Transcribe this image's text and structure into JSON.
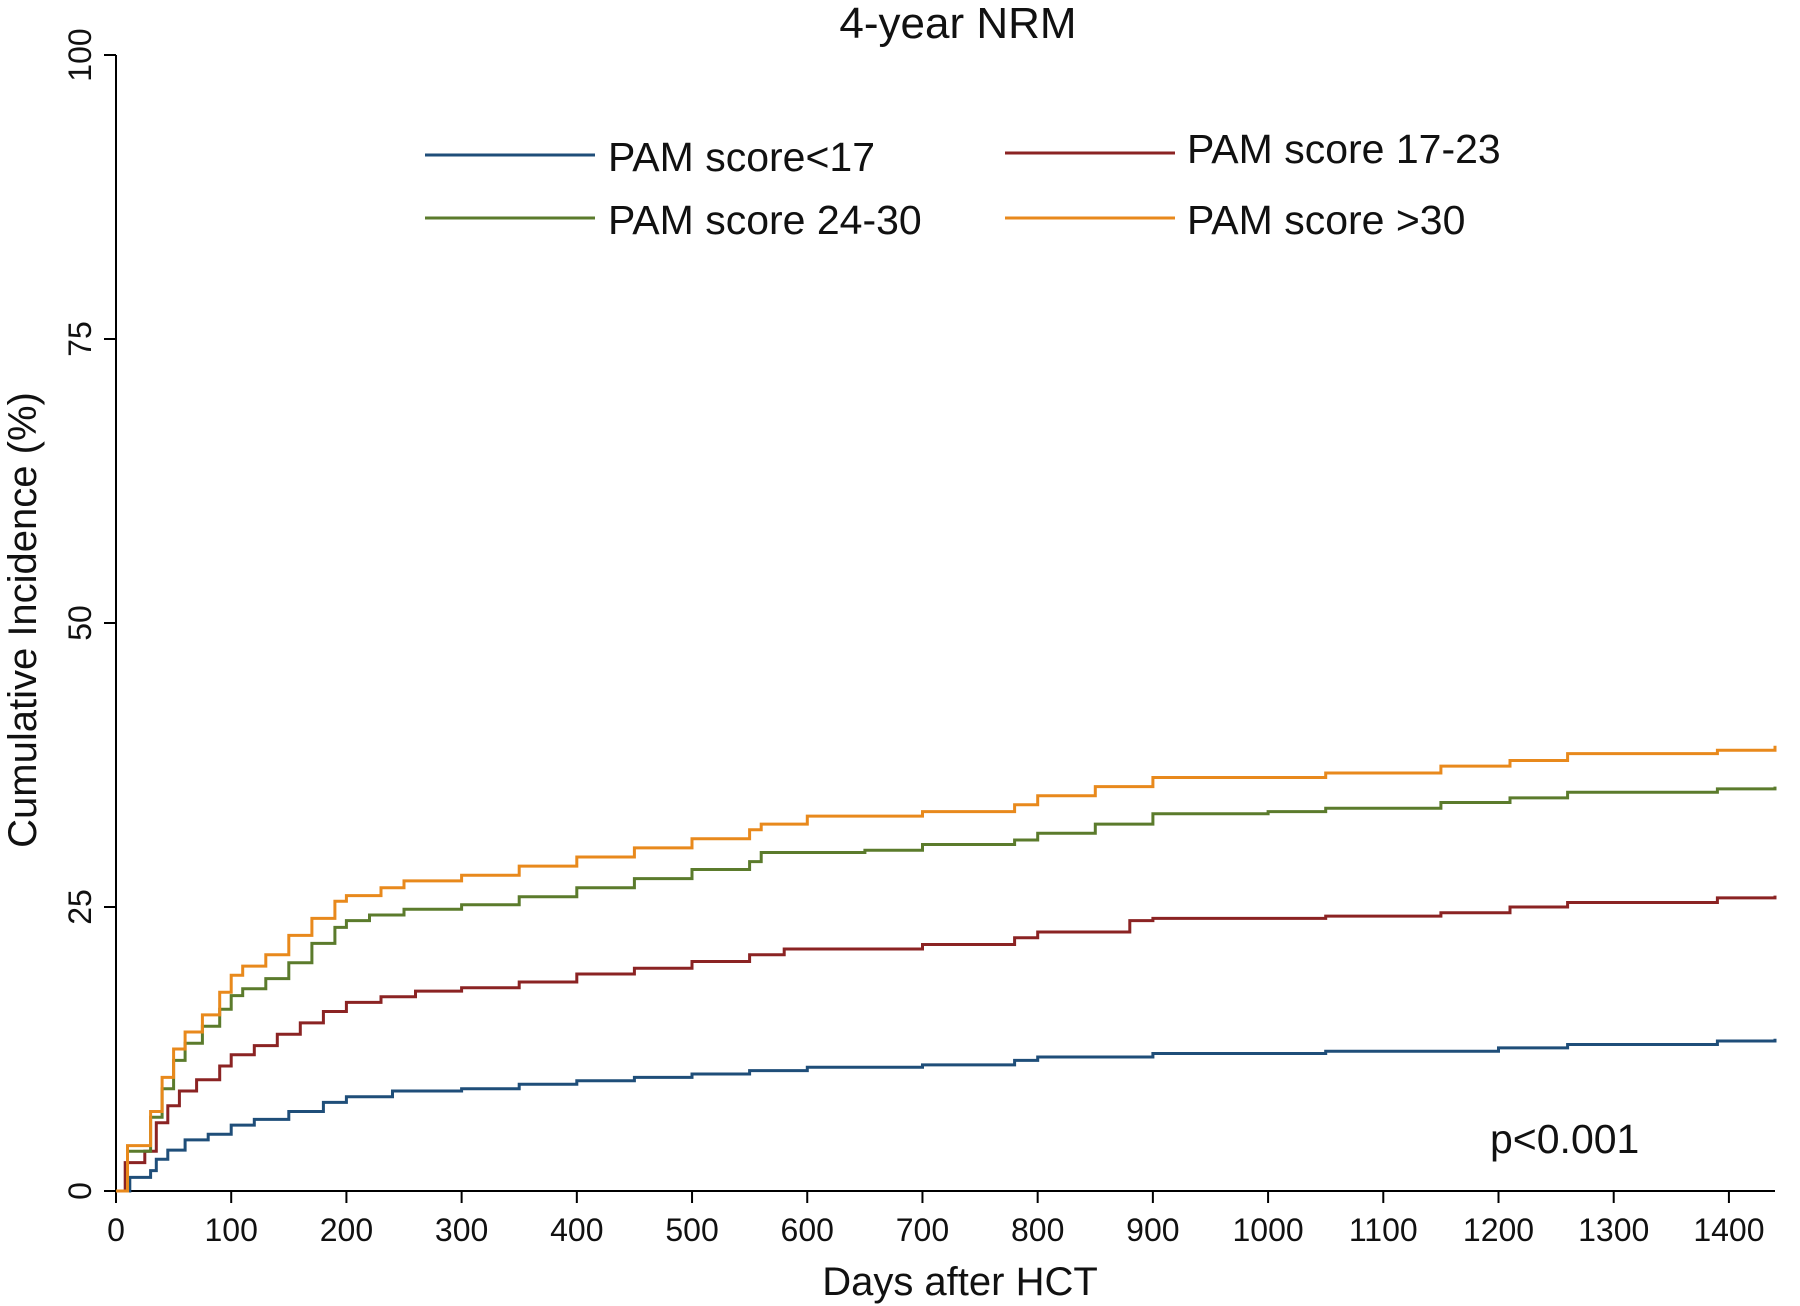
{
  "chart_data": {
    "type": "line",
    "step": true,
    "title": "4-year NRM",
    "xlabel": "Days after HCT",
    "ylabel": "Cumulative Incidence (%)",
    "xlim": [
      0,
      1440
    ],
    "ylim": [
      0,
      100
    ],
    "xticks": [
      0,
      100,
      200,
      300,
      400,
      500,
      600,
      700,
      800,
      900,
      1000,
      1100,
      1200,
      1300,
      1400
    ],
    "yticks": [
      0,
      25,
      50,
      75,
      100
    ],
    "grid": false,
    "legend_position": "top",
    "annotation": "p<0.001",
    "series": [
      {
        "name": "PAM score<17",
        "color": "#1f4e79",
        "points": [
          [
            0,
            0
          ],
          [
            12,
            1.2
          ],
          [
            30,
            1.8
          ],
          [
            35,
            2.8
          ],
          [
            45,
            3.6
          ],
          [
            60,
            4.5
          ],
          [
            80,
            5.0
          ],
          [
            100,
            5.8
          ],
          [
            120,
            6.3
          ],
          [
            150,
            7.0
          ],
          [
            180,
            7.8
          ],
          [
            200,
            8.3
          ],
          [
            240,
            8.8
          ],
          [
            300,
            9.0
          ],
          [
            350,
            9.4
          ],
          [
            400,
            9.7
          ],
          [
            450,
            10.0
          ],
          [
            500,
            10.3
          ],
          [
            550,
            10.6
          ],
          [
            600,
            10.9
          ],
          [
            700,
            11.1
          ],
          [
            780,
            11.5
          ],
          [
            800,
            11.8
          ],
          [
            900,
            12.1
          ],
          [
            1050,
            12.3
          ],
          [
            1200,
            12.6
          ],
          [
            1260,
            12.9
          ],
          [
            1390,
            13.2
          ],
          [
            1440,
            13.4
          ]
        ]
      },
      {
        "name": "PAM score 17-23",
        "color": "#8b2323",
        "points": [
          [
            0,
            0
          ],
          [
            8,
            2.5
          ],
          [
            25,
            3.5
          ],
          [
            35,
            6.0
          ],
          [
            45,
            7.5
          ],
          [
            55,
            8.8
          ],
          [
            70,
            9.8
          ],
          [
            90,
            11.0
          ],
          [
            100,
            12.0
          ],
          [
            120,
            12.8
          ],
          [
            140,
            13.8
          ],
          [
            160,
            14.8
          ],
          [
            180,
            15.8
          ],
          [
            200,
            16.6
          ],
          [
            230,
            17.1
          ],
          [
            260,
            17.6
          ],
          [
            300,
            17.9
          ],
          [
            350,
            18.4
          ],
          [
            400,
            19.1
          ],
          [
            450,
            19.6
          ],
          [
            500,
            20.2
          ],
          [
            550,
            20.8
          ],
          [
            580,
            21.3
          ],
          [
            700,
            21.7
          ],
          [
            780,
            22.3
          ],
          [
            800,
            22.8
          ],
          [
            880,
            23.8
          ],
          [
            900,
            24.0
          ],
          [
            1050,
            24.2
          ],
          [
            1150,
            24.5
          ],
          [
            1210,
            25.0
          ],
          [
            1260,
            25.4
          ],
          [
            1390,
            25.8
          ],
          [
            1440,
            26.0
          ]
        ]
      },
      {
        "name": "PAM score 24-30",
        "color": "#5b7b2c",
        "points": [
          [
            0,
            0
          ],
          [
            10,
            3.5
          ],
          [
            30,
            6.5
          ],
          [
            40,
            9.0
          ],
          [
            50,
            11.5
          ],
          [
            60,
            13.0
          ],
          [
            75,
            14.5
          ],
          [
            90,
            16.0
          ],
          [
            100,
            17.2
          ],
          [
            110,
            17.8
          ],
          [
            130,
            18.7
          ],
          [
            150,
            20.1
          ],
          [
            170,
            21.8
          ],
          [
            190,
            23.2
          ],
          [
            200,
            23.8
          ],
          [
            220,
            24.3
          ],
          [
            250,
            24.8
          ],
          [
            300,
            25.2
          ],
          [
            350,
            25.9
          ],
          [
            400,
            26.7
          ],
          [
            450,
            27.5
          ],
          [
            500,
            28.3
          ],
          [
            550,
            29.0
          ],
          [
            560,
            29.8
          ],
          [
            650,
            30.0
          ],
          [
            700,
            30.5
          ],
          [
            780,
            30.9
          ],
          [
            800,
            31.5
          ],
          [
            850,
            32.3
          ],
          [
            900,
            33.2
          ],
          [
            1000,
            33.4
          ],
          [
            1050,
            33.7
          ],
          [
            1150,
            34.2
          ],
          [
            1210,
            34.6
          ],
          [
            1260,
            35.1
          ],
          [
            1390,
            35.4
          ],
          [
            1440,
            35.6
          ]
        ]
      },
      {
        "name": "PAM score >30",
        "color": "#e8891c",
        "points": [
          [
            0,
            0
          ],
          [
            10,
            4.0
          ],
          [
            30,
            7.0
          ],
          [
            40,
            10.0
          ],
          [
            50,
            12.5
          ],
          [
            60,
            14.0
          ],
          [
            75,
            15.5
          ],
          [
            90,
            17.5
          ],
          [
            100,
            19.0
          ],
          [
            110,
            19.8
          ],
          [
            130,
            20.8
          ],
          [
            150,
            22.5
          ],
          [
            170,
            24.0
          ],
          [
            190,
            25.5
          ],
          [
            200,
            26.0
          ],
          [
            230,
            26.7
          ],
          [
            250,
            27.3
          ],
          [
            300,
            27.8
          ],
          [
            350,
            28.6
          ],
          [
            400,
            29.4
          ],
          [
            450,
            30.2
          ],
          [
            500,
            31.0
          ],
          [
            550,
            31.8
          ],
          [
            560,
            32.3
          ],
          [
            600,
            33.0
          ],
          [
            700,
            33.4
          ],
          [
            780,
            34.0
          ],
          [
            800,
            34.8
          ],
          [
            850,
            35.6
          ],
          [
            900,
            36.4
          ],
          [
            1050,
            36.8
          ],
          [
            1150,
            37.4
          ],
          [
            1210,
            37.9
          ],
          [
            1260,
            38.5
          ],
          [
            1390,
            38.8
          ],
          [
            1440,
            39.2
          ]
        ]
      }
    ]
  }
}
